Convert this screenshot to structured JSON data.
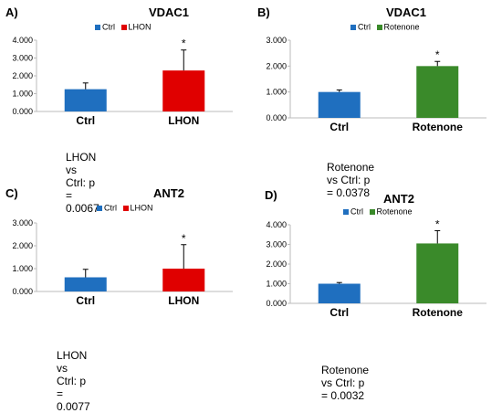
{
  "chart_data": [
    {
      "letter": "A)",
      "type": "bar",
      "title": "VDAC1",
      "categories": [
        "Ctrl",
        "LHON"
      ],
      "values": [
        1.25,
        2.3
      ],
      "errors": [
        0.35,
        1.15
      ],
      "colors": [
        "#1f6fbf",
        "#e00000"
      ],
      "legend": [
        "Ctrl",
        "LHON"
      ],
      "ylim": [
        0,
        4
      ],
      "yticks": [
        "0.000",
        "1.000",
        "2.000",
        "3.000",
        "4.000"
      ],
      "significance": [
        "",
        "*"
      ],
      "pvalue_text": "LHON vs Ctrl: p = 0.0067"
    },
    {
      "letter": "B)",
      "type": "bar",
      "title": "VDAC1",
      "categories": [
        "Ctrl",
        "Rotenone"
      ],
      "values": [
        1.0,
        2.0
      ],
      "errors": [
        0.08,
        0.18
      ],
      "colors": [
        "#1f6fbf",
        "#3a8a2a"
      ],
      "legend": [
        "Ctrl",
        "Rotenone"
      ],
      "ylim": [
        0,
        3
      ],
      "yticks": [
        "0.000",
        "1.000",
        "2.000",
        "3.000"
      ],
      "significance": [
        "",
        "*"
      ],
      "pvalue_text": "Rotenone vs Ctrl: p = 0.0378"
    },
    {
      "letter": "C)",
      "type": "bar",
      "title": "ANT2",
      "categories": [
        "Ctrl",
        "LHON"
      ],
      "values": [
        0.62,
        1.0
      ],
      "errors": [
        0.35,
        1.05
      ],
      "colors": [
        "#1f6fbf",
        "#e00000"
      ],
      "legend": [
        "Ctrl",
        "LHON"
      ],
      "ylim": [
        0,
        3
      ],
      "yticks": [
        "0.000",
        "1.000",
        "2.000",
        "3.000"
      ],
      "significance": [
        "",
        "*"
      ],
      "pvalue_text": "LHON vs Ctrl: p = 0.0077"
    },
    {
      "letter": "D)",
      "type": "bar",
      "title": "ANT2",
      "categories": [
        "Ctrl",
        "Rotenone"
      ],
      "values": [
        1.0,
        3.05
      ],
      "errors": [
        0.06,
        0.65
      ],
      "colors": [
        "#1f6fbf",
        "#3a8a2a"
      ],
      "legend": [
        "Ctrl",
        "Rotenone"
      ],
      "ylim": [
        0,
        4
      ],
      "yticks": [
        "0.000",
        "1.000",
        "2.000",
        "3.000",
        "4.000"
      ],
      "significance": [
        "",
        "*"
      ],
      "pvalue_text": "Rotenone vs Ctrl: p = 0.0032"
    }
  ]
}
